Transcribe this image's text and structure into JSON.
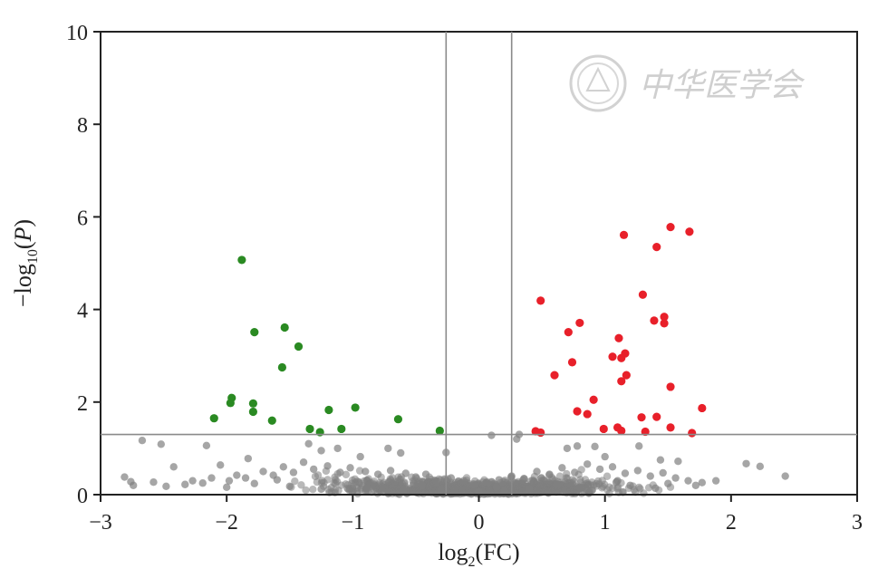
{
  "chart_data": {
    "type": "scatter",
    "title": "",
    "xlabel": {
      "main": "log",
      "sub": "2",
      "rest": "(FC)"
    },
    "ylabel": {
      "prefix": "−log",
      "sub": "10",
      "rest": "(",
      "italic": "P",
      "close": ")"
    },
    "xlim": [
      -3,
      3
    ],
    "ylim": [
      0,
      10
    ],
    "x_ticks": [
      -3,
      -2,
      -1,
      0,
      1,
      2,
      3
    ],
    "x_tick_labels": [
      "−3",
      "−2",
      "−1",
      "0",
      "1",
      "2",
      "3"
    ],
    "y_ticks": [
      0,
      2,
      4,
      6,
      8,
      10
    ],
    "y_tick_labels": [
      "0",
      "2",
      "4",
      "6",
      "8",
      "10"
    ],
    "grid": false,
    "thresholds": {
      "x": [
        -0.26,
        0.26
      ],
      "y": 1.3
    },
    "colors": {
      "up": "#e8202a",
      "down": "#2a8a22",
      "ns": "#808080",
      "threshold": "#8a8a8a",
      "axis": "#222222"
    },
    "watermark": "中华医学会",
    "series": [
      {
        "group": "down",
        "points": [
          [
            -1.88,
            5.07
          ],
          [
            -1.54,
            3.61
          ],
          [
            -1.78,
            3.51
          ],
          [
            -1.43,
            3.2
          ],
          [
            -1.56,
            2.75
          ],
          [
            -1.96,
            2.09
          ],
          [
            -1.97,
            1.98
          ],
          [
            -1.79,
            1.97
          ],
          [
            -2.1,
            1.65
          ],
          [
            -1.79,
            1.79
          ],
          [
            -1.64,
            1.6
          ],
          [
            -1.19,
            1.83
          ],
          [
            -0.98,
            1.88
          ],
          [
            -0.64,
            1.63
          ],
          [
            -1.34,
            1.42
          ],
          [
            -1.26,
            1.35
          ],
          [
            -1.09,
            1.42
          ],
          [
            -0.31,
            1.38
          ]
        ]
      },
      {
        "group": "up",
        "points": [
          [
            1.52,
            5.78
          ],
          [
            1.67,
            5.68
          ],
          [
            1.15,
            5.61
          ],
          [
            1.41,
            5.35
          ],
          [
            0.49,
            4.19
          ],
          [
            1.3,
            4.32
          ],
          [
            1.47,
            3.84
          ],
          [
            1.39,
            3.76
          ],
          [
            1.47,
            3.7
          ],
          [
            0.8,
            3.71
          ],
          [
            0.71,
            3.51
          ],
          [
            1.11,
            3.38
          ],
          [
            1.16,
            3.05
          ],
          [
            1.06,
            2.98
          ],
          [
            1.13,
            2.95
          ],
          [
            0.74,
            2.86
          ],
          [
            0.6,
            2.58
          ],
          [
            1.17,
            2.58
          ],
          [
            1.13,
            2.45
          ],
          [
            1.52,
            2.33
          ],
          [
            0.91,
            2.05
          ],
          [
            0.78,
            1.8
          ],
          [
            0.86,
            1.74
          ],
          [
            1.77,
            1.87
          ],
          [
            1.29,
            1.67
          ],
          [
            1.41,
            1.68
          ],
          [
            0.99,
            1.42
          ],
          [
            1.1,
            1.45
          ],
          [
            1.13,
            1.38
          ],
          [
            1.32,
            1.36
          ],
          [
            1.52,
            1.45
          ],
          [
            1.69,
            1.33
          ],
          [
            0.45,
            1.37
          ],
          [
            0.49,
            1.34
          ]
        ]
      },
      {
        "group": "ns",
        "points": [
          [
            -2.67,
            1.17
          ],
          [
            -2.52,
            1.09
          ],
          [
            -2.16,
            1.06
          ],
          [
            -2.42,
            0.6
          ],
          [
            -2.05,
            0.64
          ],
          [
            -1.83,
            0.78
          ],
          [
            -1.35,
            1.1
          ],
          [
            -1.25,
            0.95
          ],
          [
            -1.12,
            1.0
          ],
          [
            -0.94,
            0.82
          ],
          [
            -0.72,
            1.0
          ],
          [
            -0.62,
            0.9
          ],
          [
            -0.26,
            0.91
          ],
          [
            0.1,
            1.28
          ],
          [
            0.32,
            1.3
          ],
          [
            0.3,
            1.2
          ],
          [
            0.7,
            1.0
          ],
          [
            0.78,
            1.05
          ],
          [
            0.92,
            1.04
          ],
          [
            1.27,
            1.05
          ],
          [
            1.0,
            0.82
          ],
          [
            1.44,
            0.75
          ],
          [
            1.58,
            0.72
          ],
          [
            2.12,
            0.67
          ],
          [
            2.23,
            0.61
          ],
          [
            2.43,
            0.4
          ],
          [
            1.88,
            0.3
          ],
          [
            1.77,
            0.26
          ],
          [
            -2.81,
            0.38
          ],
          [
            -2.76,
            0.28
          ],
          [
            -2.74,
            0.2
          ],
          [
            -2.58,
            0.27
          ],
          [
            -2.48,
            0.18
          ],
          [
            -2.33,
            0.22
          ],
          [
            -2.27,
            0.3
          ],
          [
            -2.19,
            0.25
          ],
          [
            -2.12,
            0.36
          ],
          [
            -1.98,
            0.3
          ],
          [
            -1.92,
            0.42
          ],
          [
            -1.85,
            0.36
          ],
          [
            -1.71,
            0.5
          ],
          [
            -1.63,
            0.42
          ],
          [
            -1.55,
            0.6
          ],
          [
            -1.47,
            0.48
          ],
          [
            -1.39,
            0.7
          ],
          [
            -1.31,
            0.55
          ],
          [
            -1.2,
            0.62
          ],
          [
            -1.1,
            0.48
          ],
          [
            -1.02,
            0.58
          ],
          [
            -0.9,
            0.5
          ],
          [
            -0.8,
            0.44
          ],
          [
            -0.7,
            0.52
          ],
          [
            -0.58,
            0.46
          ],
          [
            -0.5,
            0.38
          ],
          [
            -0.42,
            0.44
          ],
          [
            -0.34,
            0.3
          ],
          [
            -0.22,
            0.36
          ],
          [
            -0.12,
            0.3
          ],
          [
            -0.04,
            0.22
          ],
          [
            0.06,
            0.26
          ],
          [
            0.16,
            0.32
          ],
          [
            0.26,
            0.4
          ],
          [
            0.36,
            0.34
          ],
          [
            0.46,
            0.5
          ],
          [
            0.56,
            0.44
          ],
          [
            0.66,
            0.58
          ],
          [
            0.76,
            0.48
          ],
          [
            0.86,
            0.66
          ],
          [
            0.96,
            0.55
          ],
          [
            1.06,
            0.6
          ],
          [
            1.16,
            0.46
          ],
          [
            1.26,
            0.52
          ],
          [
            1.36,
            0.4
          ],
          [
            1.46,
            0.47
          ],
          [
            1.56,
            0.36
          ],
          [
            1.66,
            0.3
          ],
          [
            1.72,
            0.2
          ],
          [
            -1.5,
            0.18
          ],
          [
            -1.0,
            0.14
          ],
          [
            -0.6,
            0.12
          ],
          [
            -0.3,
            0.1
          ],
          [
            0.0,
            0.06
          ],
          [
            0.2,
            0.08
          ],
          [
            0.4,
            0.12
          ],
          [
            0.8,
            0.16
          ],
          [
            1.2,
            0.2
          ],
          [
            -1.78,
            0.24
          ],
          [
            -1.6,
            0.32
          ],
          [
            -0.95,
            0.27
          ],
          [
            -0.45,
            0.2
          ],
          [
            0.14,
            0.16
          ],
          [
            0.62,
            0.22
          ],
          [
            1.1,
            0.3
          ],
          [
            1.5,
            0.24
          ],
          [
            -2.0,
            0.16
          ],
          [
            -1.25,
            0.12
          ],
          [
            0.9,
            0.1
          ],
          [
            1.4,
            0.14
          ]
        ]
      }
    ],
    "ns_cloud": {
      "description_hidden": true,
      "count": 1100,
      "x_spread": 0.7,
      "y_scale": 0.22,
      "seed": 7
    }
  }
}
